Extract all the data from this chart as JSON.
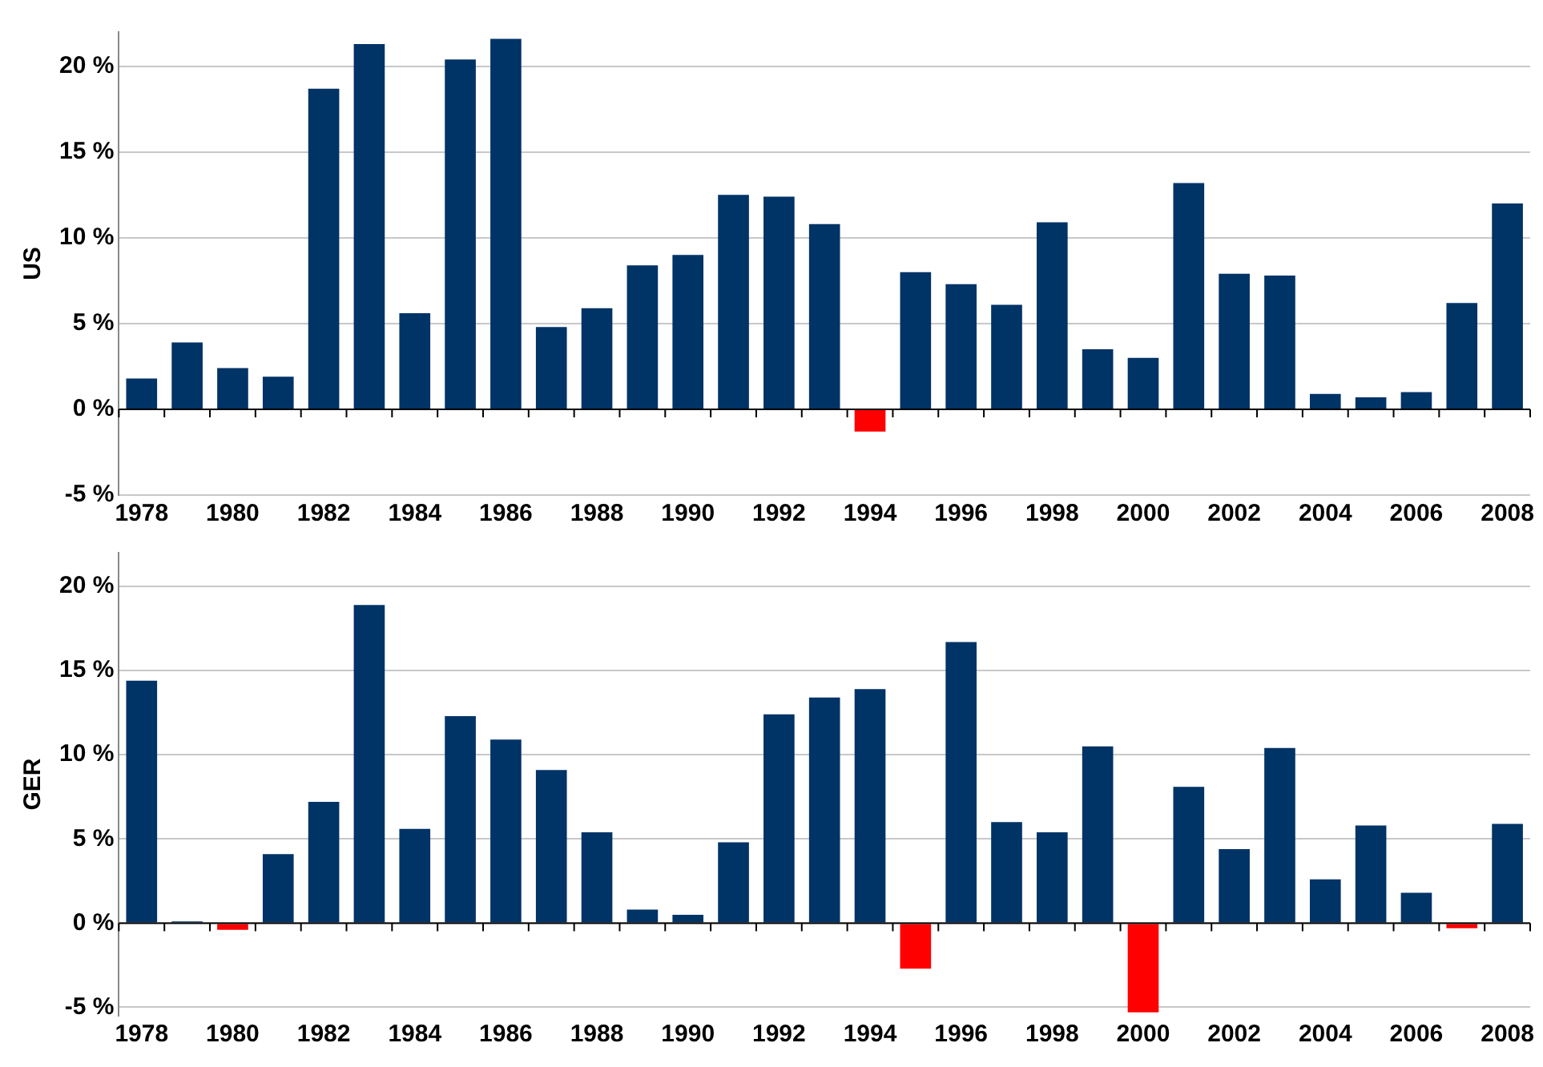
{
  "chart_data": [
    {
      "type": "bar",
      "ylabel": "US",
      "categories": [
        "1978",
        null,
        "1980",
        null,
        "1982",
        null,
        "1984",
        null,
        "1986",
        null,
        "1988",
        null,
        "1990",
        null,
        "1992",
        null,
        "1994",
        null,
        "1996",
        null,
        "1998",
        null,
        "2000",
        null,
        "2002",
        null,
        "2004",
        null,
        "2006",
        null,
        "2008"
      ],
      "values": [
        1.8,
        3.9,
        2.4,
        1.9,
        18.7,
        21.3,
        5.6,
        20.4,
        21.6,
        4.8,
        5.9,
        8.4,
        9.0,
        12.5,
        12.4,
        10.8,
        -1.3,
        8.0,
        7.3,
        6.1,
        10.9,
        3.5,
        3.0,
        13.2,
        7.9,
        7.8,
        0.9,
        0.7,
        1.0,
        6.2,
        12.0
      ],
      "colors": [
        "#003366",
        "#003366",
        "#003366",
        "#003366",
        "#003366",
        "#003366",
        "#003366",
        "#003366",
        "#003366",
        "#003366",
        "#003366",
        "#003366",
        "#003366",
        "#003366",
        "#003366",
        "#003366",
        "#ff0000",
        "#003366",
        "#003366",
        "#003366",
        "#003366",
        "#003366",
        "#003366",
        "#003366",
        "#003366",
        "#003366",
        "#003366",
        "#003366",
        "#003366",
        "#003366",
        "#003366"
      ],
      "ylim": [
        -5,
        22
      ],
      "yticks": [
        {
          "value": -5,
          "label": "-5 %"
        },
        {
          "value": 0,
          "label": "0 %"
        },
        {
          "value": 5,
          "label": "5 %"
        },
        {
          "value": 10,
          "label": "10 %"
        },
        {
          "value": 15,
          "label": "15 %"
        },
        {
          "value": 20,
          "label": "20 %"
        }
      ],
      "grid": "y",
      "legend": false
    },
    {
      "type": "bar",
      "ylabel": "GER",
      "categories": [
        "1978",
        null,
        "1980",
        null,
        "1982",
        null,
        "1984",
        null,
        "1986",
        null,
        "1988",
        null,
        "1990",
        null,
        "1992",
        null,
        "1994",
        null,
        "1996",
        null,
        "1998",
        null,
        "2000",
        null,
        "2002",
        null,
        "2004",
        null,
        "2006",
        null,
        "2008"
      ],
      "values": [
        14.4,
        0.1,
        -0.4,
        4.1,
        7.2,
        18.9,
        5.6,
        12.3,
        10.9,
        9.1,
        5.4,
        0.8,
        0.5,
        4.8,
        12.4,
        13.4,
        13.9,
        -2.7,
        16.7,
        6.0,
        5.4,
        10.5,
        -5.3,
        8.1,
        4.4,
        10.4,
        2.6,
        5.8,
        1.8,
        -0.3,
        5.9
      ],
      "colors": [
        "#003366",
        "#003366",
        "#ff0000",
        "#003366",
        "#003366",
        "#003366",
        "#003366",
        "#003366",
        "#003366",
        "#003366",
        "#003366",
        "#003366",
        "#003366",
        "#003366",
        "#003366",
        "#003366",
        "#003366",
        "#ff0000",
        "#003366",
        "#003366",
        "#003366",
        "#003366",
        "#ff0000",
        "#003366",
        "#003366",
        "#003366",
        "#003366",
        "#003366",
        "#003366",
        "#ff0000",
        "#003366"
      ],
      "ylim": [
        -5.5,
        22
      ],
      "yticks": [
        {
          "value": -5,
          "label": "-5 %"
        },
        {
          "value": 0,
          "label": "0 %"
        },
        {
          "value": 5,
          "label": "5 %"
        },
        {
          "value": 10,
          "label": "10 %"
        },
        {
          "value": 15,
          "label": "15 %"
        },
        {
          "value": 20,
          "label": "20 %"
        }
      ],
      "grid": "y",
      "legend": false
    }
  ]
}
